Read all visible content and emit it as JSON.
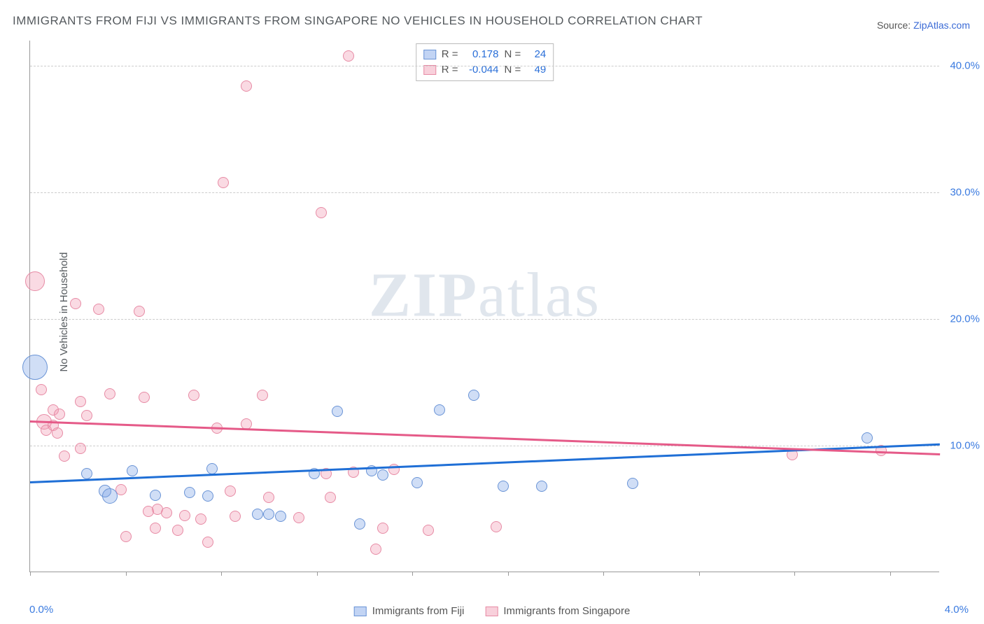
{
  "title": "IMMIGRANTS FROM FIJI VS IMMIGRANTS FROM SINGAPORE NO VEHICLES IN HOUSEHOLD CORRELATION CHART",
  "source_label": "Source: ",
  "source_link": "ZipAtlas.com",
  "ylabel": "No Vehicles in Household",
  "watermark_a": "ZIP",
  "watermark_b": "atlas",
  "chart": {
    "type": "scatter",
    "xlim": [
      0.0,
      4.0
    ],
    "ylim": [
      0.0,
      42.0
    ],
    "y_ticks": [
      10.0,
      20.0,
      30.0,
      40.0
    ],
    "y_tick_labels": [
      "10.0%",
      "20.0%",
      "30.0%",
      "40.0%"
    ],
    "x_tick_positions": [
      0.0,
      0.42,
      0.84,
      1.26,
      1.68,
      2.1,
      2.52,
      2.94,
      3.36,
      3.78
    ],
    "x_axis_left_label": "0.0%",
    "x_axis_right_label": "4.0%",
    "grid_color": "#cccccc",
    "background_color": "#ffffff",
    "series": [
      {
        "name": "Immigrants from Fiji",
        "color_fill": "rgba(120,160,230,0.35)",
        "color_stroke": "#6a94d6",
        "trend_color": "#1f6fd6",
        "R": "0.178",
        "N": "24",
        "trend": {
          "x1": 0.0,
          "y1": 7.2,
          "x2": 4.0,
          "y2": 10.2
        },
        "points": [
          {
            "x": 0.02,
            "y": 16.2,
            "r": 18
          },
          {
            "x": 0.25,
            "y": 7.8,
            "r": 8
          },
          {
            "x": 0.33,
            "y": 6.4,
            "r": 9
          },
          {
            "x": 0.35,
            "y": 6.0,
            "r": 11
          },
          {
            "x": 0.45,
            "y": 8.0,
            "r": 8
          },
          {
            "x": 0.55,
            "y": 6.1,
            "r": 8
          },
          {
            "x": 0.7,
            "y": 6.3,
            "r": 8
          },
          {
            "x": 0.78,
            "y": 6.0,
            "r": 8
          },
          {
            "x": 0.8,
            "y": 8.2,
            "r": 8
          },
          {
            "x": 1.0,
            "y": 4.6,
            "r": 8
          },
          {
            "x": 1.05,
            "y": 4.6,
            "r": 8
          },
          {
            "x": 1.1,
            "y": 4.4,
            "r": 8
          },
          {
            "x": 1.25,
            "y": 7.8,
            "r": 8
          },
          {
            "x": 1.35,
            "y": 12.7,
            "r": 8
          },
          {
            "x": 1.5,
            "y": 8.0,
            "r": 8
          },
          {
            "x": 1.55,
            "y": 7.7,
            "r": 8
          },
          {
            "x": 1.45,
            "y": 3.8,
            "r": 8
          },
          {
            "x": 1.8,
            "y": 12.8,
            "r": 8
          },
          {
            "x": 1.7,
            "y": 7.1,
            "r": 8
          },
          {
            "x": 1.95,
            "y": 14.0,
            "r": 8
          },
          {
            "x": 2.08,
            "y": 6.8,
            "r": 8
          },
          {
            "x": 2.25,
            "y": 6.8,
            "r": 8
          },
          {
            "x": 2.65,
            "y": 7.0,
            "r": 8
          },
          {
            "x": 3.68,
            "y": 10.6,
            "r": 8
          }
        ]
      },
      {
        "name": "Immigrants from Singapore",
        "color_fill": "rgba(240,150,175,0.35)",
        "color_stroke": "#e78ba5",
        "trend_color": "#e55a88",
        "R": "-0.044",
        "N": "49",
        "trend": {
          "x1": 0.0,
          "y1": 12.0,
          "x2": 4.0,
          "y2": 9.4
        },
        "points": [
          {
            "x": 0.02,
            "y": 23.0,
            "r": 14
          },
          {
            "x": 0.05,
            "y": 14.4,
            "r": 8
          },
          {
            "x": 0.06,
            "y": 11.9,
            "r": 11
          },
          {
            "x": 0.07,
            "y": 11.2,
            "r": 8
          },
          {
            "x": 0.1,
            "y": 11.6,
            "r": 8
          },
          {
            "x": 0.1,
            "y": 12.8,
            "r": 8
          },
          {
            "x": 0.12,
            "y": 11.0,
            "r": 8
          },
          {
            "x": 0.13,
            "y": 12.5,
            "r": 8
          },
          {
            "x": 0.15,
            "y": 9.2,
            "r": 8
          },
          {
            "x": 0.2,
            "y": 21.2,
            "r": 8
          },
          {
            "x": 0.22,
            "y": 13.5,
            "r": 8
          },
          {
            "x": 0.22,
            "y": 9.8,
            "r": 8
          },
          {
            "x": 0.25,
            "y": 12.4,
            "r": 8
          },
          {
            "x": 0.3,
            "y": 20.8,
            "r": 8
          },
          {
            "x": 0.35,
            "y": 14.1,
            "r": 8
          },
          {
            "x": 0.4,
            "y": 6.5,
            "r": 8
          },
          {
            "x": 0.42,
            "y": 2.8,
            "r": 8
          },
          {
            "x": 0.48,
            "y": 20.6,
            "r": 8
          },
          {
            "x": 0.5,
            "y": 13.8,
            "r": 8
          },
          {
            "x": 0.52,
            "y": 4.8,
            "r": 8
          },
          {
            "x": 0.55,
            "y": 3.5,
            "r": 8
          },
          {
            "x": 0.56,
            "y": 5.0,
            "r": 8
          },
          {
            "x": 0.6,
            "y": 4.7,
            "r": 8
          },
          {
            "x": 0.65,
            "y": 3.3,
            "r": 8
          },
          {
            "x": 0.68,
            "y": 4.5,
            "r": 8
          },
          {
            "x": 0.72,
            "y": 14.0,
            "r": 8
          },
          {
            "x": 0.75,
            "y": 4.2,
            "r": 8
          },
          {
            "x": 0.78,
            "y": 2.4,
            "r": 8
          },
          {
            "x": 0.82,
            "y": 11.4,
            "r": 8
          },
          {
            "x": 0.85,
            "y": 30.8,
            "r": 8
          },
          {
            "x": 0.88,
            "y": 6.4,
            "r": 8
          },
          {
            "x": 0.9,
            "y": 4.4,
            "r": 8
          },
          {
            "x": 0.95,
            "y": 11.7,
            "r": 8
          },
          {
            "x": 0.95,
            "y": 38.4,
            "r": 8
          },
          {
            "x": 1.02,
            "y": 14.0,
            "r": 8
          },
          {
            "x": 1.05,
            "y": 5.9,
            "r": 8
          },
          {
            "x": 1.18,
            "y": 4.3,
            "r": 8
          },
          {
            "x": 1.28,
            "y": 28.4,
            "r": 8
          },
          {
            "x": 1.3,
            "y": 7.8,
            "r": 8
          },
          {
            "x": 1.32,
            "y": 5.9,
            "r": 8
          },
          {
            "x": 1.4,
            "y": 40.8,
            "r": 8
          },
          {
            "x": 1.42,
            "y": 7.9,
            "r": 8
          },
          {
            "x": 1.52,
            "y": 1.8,
            "r": 8
          },
          {
            "x": 1.55,
            "y": 3.5,
            "r": 8
          },
          {
            "x": 1.6,
            "y": 8.1,
            "r": 8
          },
          {
            "x": 1.75,
            "y": 3.3,
            "r": 8
          },
          {
            "x": 2.05,
            "y": 3.6,
            "r": 8
          },
          {
            "x": 3.35,
            "y": 9.3,
            "r": 8
          },
          {
            "x": 3.74,
            "y": 9.6,
            "r": 8
          }
        ]
      }
    ],
    "stats_labels": {
      "R": "R =",
      "N": "N ="
    },
    "bottom_legend": [
      {
        "swatch": "blue",
        "label": "Immigrants from Fiji"
      },
      {
        "swatch": "pink",
        "label": "Immigrants from Singapore"
      }
    ]
  }
}
